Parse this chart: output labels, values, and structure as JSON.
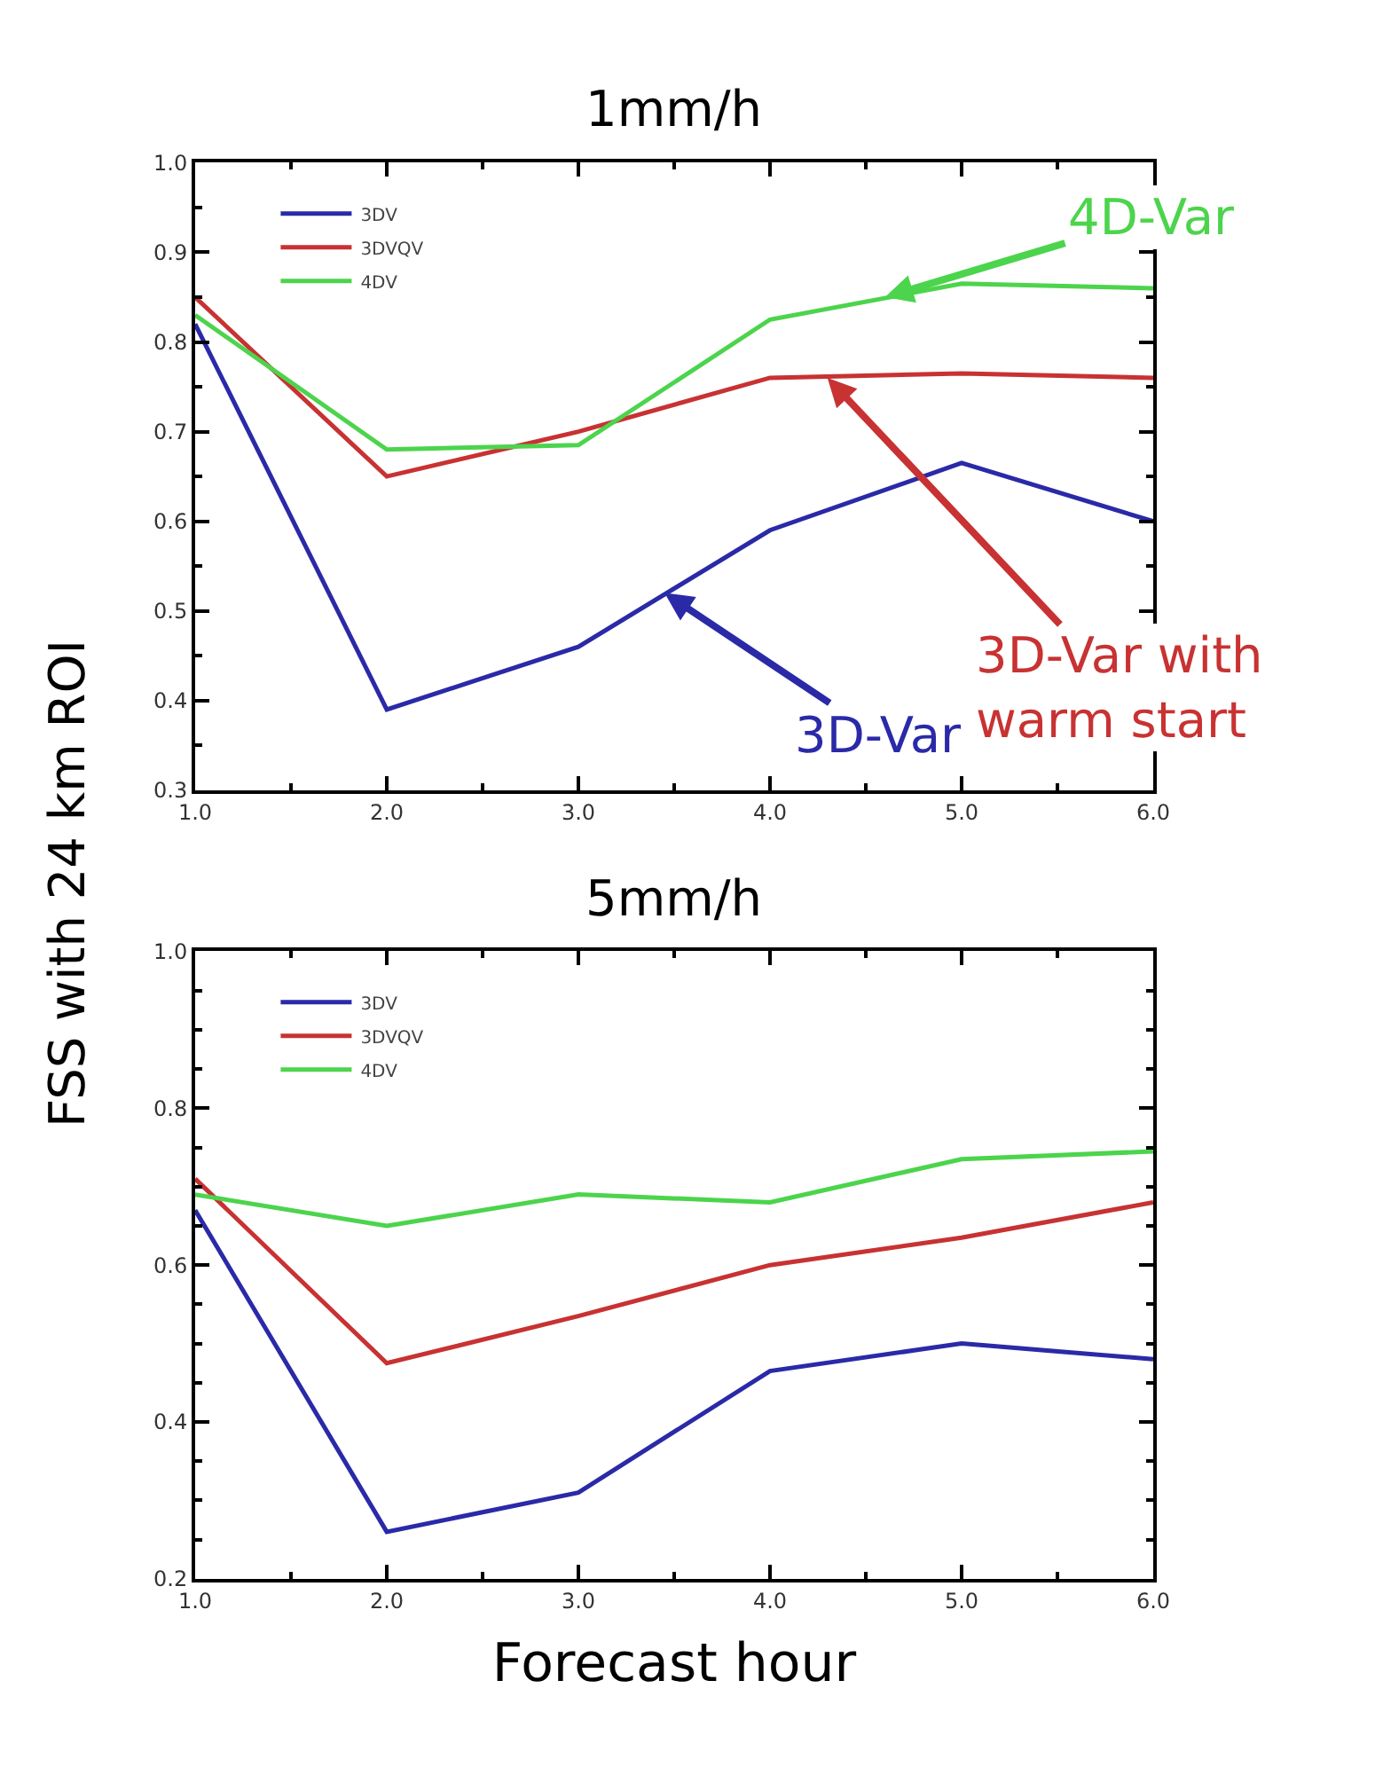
{
  "chart_data": [
    {
      "type": "line",
      "title": "1mm/h",
      "ylabel": "FSS with 24 km ROI",
      "x": [
        1,
        2,
        3,
        4,
        5,
        6
      ],
      "series": [
        {
          "name": "3DV",
          "color": "#2a2aa8",
          "values": [
            0.82,
            0.39,
            0.46,
            0.59,
            0.665,
            0.6
          ]
        },
        {
          "name": "3DVQV",
          "color": "#c83232",
          "values": [
            0.85,
            0.65,
            0.7,
            0.76,
            0.765,
            0.76
          ]
        },
        {
          "name": "4DV",
          "color": "#4cd44c",
          "values": [
            0.83,
            0.68,
            0.685,
            0.825,
            0.865,
            0.86
          ]
        }
      ],
      "xlim": [
        1,
        6
      ],
      "xticks": [
        {
          "value": 1,
          "label": "1.0"
        },
        {
          "value": 2,
          "label": "2.0"
        },
        {
          "value": 3,
          "label": "3.0"
        },
        {
          "value": 4,
          "label": "4.0"
        },
        {
          "value": 5,
          "label": "5.0"
        },
        {
          "value": 6,
          "label": "6.0"
        }
      ],
      "ylim": [
        0.3,
        1.0
      ],
      "yticks": [
        {
          "value": 0.3,
          "label": "0.3"
        },
        {
          "value": 0.4,
          "label": "0.4"
        },
        {
          "value": 0.5,
          "label": "0.5"
        },
        {
          "value": 0.6,
          "label": "0.6"
        },
        {
          "value": 0.7,
          "label": "0.7"
        },
        {
          "value": 0.8,
          "label": "0.8"
        },
        {
          "value": 0.9,
          "label": "0.9"
        },
        {
          "value": 1.0,
          "label": "1.0"
        }
      ],
      "annotations": [
        {
          "text": "4D-Var",
          "x": 4.6,
          "y": 0.85
        },
        {
          "text": "3D-Var with\nwarm start",
          "x": 4.3,
          "y": 0.76
        },
        {
          "text": "3D-Var",
          "x": 3.45,
          "y": 0.52
        }
      ],
      "legend": "top left",
      "marker": "none",
      "line_style": "solid"
    },
    {
      "type": "line",
      "title": "5mm/h",
      "xlabel": "Forecast hour",
      "x": [
        1,
        2,
        3,
        4,
        5,
        6
      ],
      "series": [
        {
          "name": "3DV",
          "color": "#2a2aa8",
          "values": [
            0.67,
            0.26,
            0.31,
            0.465,
            0.5,
            0.48
          ]
        },
        {
          "name": "3DVQV",
          "color": "#c83232",
          "values": [
            0.71,
            0.475,
            0.535,
            0.6,
            0.635,
            0.68
          ]
        },
        {
          "name": "4DV",
          "color": "#4cd44c",
          "values": [
            0.69,
            0.65,
            0.69,
            0.68,
            0.735,
            0.745
          ]
        }
      ],
      "xlim": [
        1,
        6
      ],
      "xticks": [
        {
          "value": 1,
          "label": "1.0"
        },
        {
          "value": 2,
          "label": "2.0"
        },
        {
          "value": 3,
          "label": "3.0"
        },
        {
          "value": 4,
          "label": "4.0"
        },
        {
          "value": 5,
          "label": "5.0"
        },
        {
          "value": 6,
          "label": "6.0"
        }
      ],
      "ylim": [
        0.2,
        1.0
      ],
      "yticks": [
        {
          "value": 0.2,
          "label": "0.2"
        },
        {
          "value": 0.4,
          "label": "0.4"
        },
        {
          "value": 0.6,
          "label": "0.6"
        },
        {
          "value": 0.8,
          "label": "0.8"
        },
        {
          "value": 1.0,
          "label": "1.0"
        }
      ],
      "legend": "top left",
      "marker": "none",
      "line_style": "solid"
    }
  ]
}
